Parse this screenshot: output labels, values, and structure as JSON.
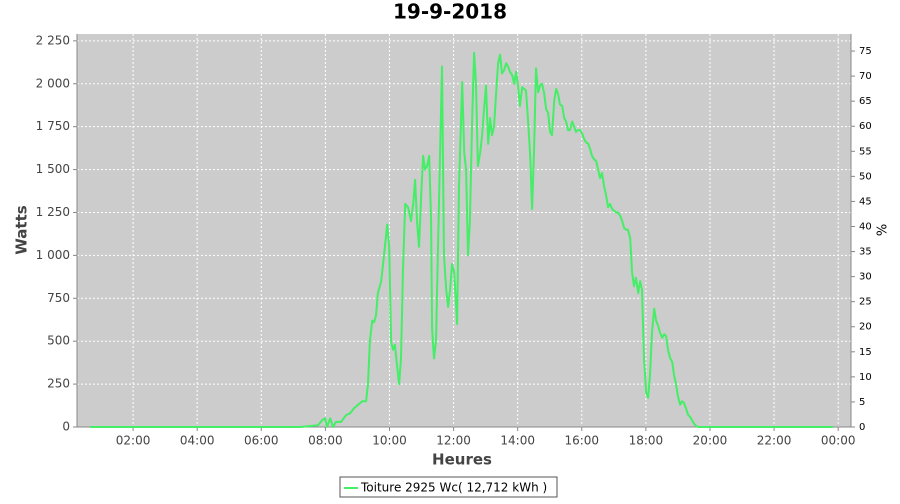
{
  "chart_data": {
    "type": "line",
    "title": "19-9-2018",
    "xlabel": "Heures",
    "ylabel": "Watts",
    "y2label": "%",
    "xlim": [
      0.25,
      24.4
    ],
    "xticks": [
      {
        "value": 2,
        "label": "02:00"
      },
      {
        "value": 4,
        "label": "04:00"
      },
      {
        "value": 6,
        "label": "06:00"
      },
      {
        "value": 8,
        "label": "08:00"
      },
      {
        "value": 10,
        "label": "10:00"
      },
      {
        "value": 12,
        "label": "12:00"
      },
      {
        "value": 14,
        "label": "14:00"
      },
      {
        "value": 16,
        "label": "16:00"
      },
      {
        "value": 18,
        "label": "18:00"
      },
      {
        "value": 20,
        "label": "20:00"
      },
      {
        "value": 22,
        "label": "22:00"
      },
      {
        "value": 24,
        "label": "00:00"
      }
    ],
    "ylim": [
      0,
      2290
    ],
    "yticks": [
      0,
      250,
      500,
      750,
      {
        "value": 1000,
        "label": "1 000"
      },
      {
        "value": 1250,
        "label": "1 250"
      },
      {
        "value": 1500,
        "label": "1 500"
      },
      {
        "value": 1750,
        "label": "1 750"
      },
      {
        "value": 2000,
        "label": "2 000"
      },
      {
        "value": 2250,
        "label": "2 250"
      }
    ],
    "y2lim": [
      0,
      78.4
    ],
    "y2ticks": [
      0,
      5,
      10,
      15,
      20,
      25,
      30,
      35,
      40,
      45,
      50,
      55,
      60,
      65,
      70,
      75
    ],
    "grid": true,
    "x": [
      0.66,
      7.21,
      7.77,
      7.9,
      7.99,
      8.05,
      8.15,
      8.24,
      8.33,
      8.49,
      8.65,
      8.77,
      8.9,
      9.02,
      9.15,
      9.27,
      9.33,
      9.39,
      9.46,
      9.52,
      9.58,
      9.64,
      9.74,
      9.83,
      9.93,
      9.99,
      10.05,
      10.11,
      10.17,
      10.24,
      10.3,
      10.36,
      10.42,
      10.49,
      10.58,
      10.67,
      10.74,
      10.8,
      10.86,
      10.92,
      10.99,
      11.05,
      11.11,
      11.17,
      11.24,
      11.3,
      11.33,
      11.39,
      11.45,
      11.52,
      11.58,
      11.64,
      11.7,
      11.77,
      11.83,
      11.89,
      11.95,
      12.02,
      12.11,
      12.17,
      12.27,
      12.33,
      12.39,
      12.45,
      12.51,
      12.58,
      12.64,
      12.7,
      12.76,
      12.83,
      12.89,
      12.95,
      13.01,
      13.08,
      13.14,
      13.2,
      13.26,
      13.33,
      13.39,
      13.45,
      13.51,
      13.58,
      13.64,
      13.7,
      13.76,
      13.83,
      13.89,
      13.95,
      14.01,
      14.07,
      14.14,
      14.2,
      14.26,
      14.32,
      14.39,
      14.45,
      14.51,
      14.57,
      14.64,
      14.7,
      14.76,
      14.82,
      14.89,
      14.95,
      15.01,
      15.07,
      15.14,
      15.2,
      15.26,
      15.32,
      15.39,
      15.45,
      15.51,
      15.57,
      15.63,
      15.7,
      15.76,
      15.82,
      15.88,
      15.95,
      16.01,
      16.07,
      16.13,
      16.2,
      16.26,
      16.32,
      16.38,
      16.45,
      16.51,
      16.57,
      16.63,
      16.7,
      16.76,
      16.82,
      16.88,
      16.95,
      17.01,
      17.07,
      17.13,
      17.2,
      17.26,
      17.32,
      17.38,
      17.44,
      17.51,
      17.57,
      17.63,
      17.69,
      17.76,
      17.82,
      17.88,
      17.94,
      18.01,
      18.07,
      18.13,
      18.19,
      18.26,
      18.32,
      18.38,
      18.44,
      18.51,
      18.57,
      18.63,
      18.69,
      18.76,
      18.82,
      18.88,
      18.94,
      19.0,
      19.07,
      19.13,
      19.19,
      19.25,
      19.32,
      19.38,
      19.44,
      19.5,
      19.57,
      19.63,
      23.84
    ],
    "series": [
      {
        "name": "Toiture 2925 Wc( 12,712 kWh )",
        "color": "#44ee66",
        "values": [
          0,
          0,
          10,
          40,
          50,
          0,
          50,
          0,
          30,
          30,
          70,
          80,
          110,
          130,
          150,
          150,
          250,
          500,
          620,
          610,
          650,
          780,
          850,
          1000,
          1180,
          1050,
          500,
          450,
          480,
          350,
          250,
          400,
          900,
          1300,
          1280,
          1200,
          1300,
          1440,
          1200,
          1050,
          1350,
          1580,
          1500,
          1520,
          1580,
          1200,
          570,
          400,
          500,
          1100,
          1600,
          2100,
          1000,
          800,
          700,
          800,
          950,
          900,
          600,
          1400,
          2010,
          1600,
          1500,
          1000,
          1200,
          1800,
          2180,
          2000,
          1520,
          1600,
          1700,
          1850,
          1990,
          1650,
          1800,
          1700,
          1750,
          1950,
          2120,
          2170,
          2060,
          2080,
          2120,
          2100,
          2070,
          2050,
          2000,
          2070,
          1990,
          1870,
          1980,
          1970,
          1960,
          1800,
          1580,
          1270,
          1600,
          2090,
          1950,
          1990,
          2000,
          1950,
          1850,
          1830,
          1720,
          1700,
          1900,
          1970,
          1940,
          1880,
          1870,
          1800,
          1780,
          1730,
          1730,
          1780,
          1750,
          1720,
          1730,
          1730,
          1710,
          1680,
          1660,
          1650,
          1620,
          1580,
          1560,
          1550,
          1500,
          1450,
          1480,
          1400,
          1350,
          1280,
          1300,
          1270,
          1260,
          1250,
          1250,
          1230,
          1200,
          1160,
          1150,
          1150,
          1100,
          900,
          820,
          870,
          780,
          850,
          800,
          400,
          200,
          170,
          300,
          550,
          690,
          620,
          590,
          550,
          520,
          540,
          530,
          450,
          400,
          380,
          300,
          250,
          180,
          130,
          150,
          140,
          110,
          70,
          60,
          40,
          20,
          5,
          0,
          0
        ]
      }
    ]
  }
}
